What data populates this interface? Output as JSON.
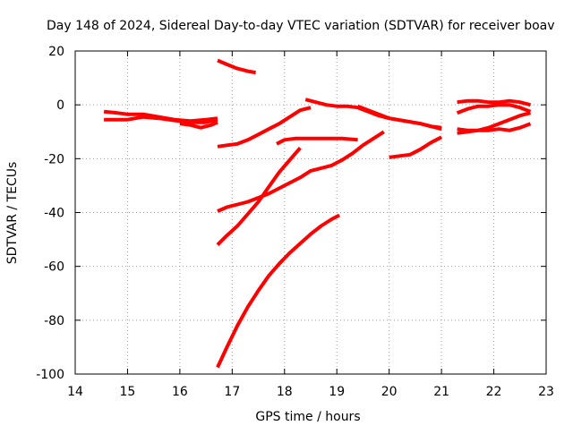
{
  "chart_data": {
    "type": "line",
    "title": "Day 148 of 2024, Sidereal Day-to-day VTEC variation (SDTVAR) for receiver boav",
    "xlabel": "GPS time / hours",
    "ylabel": "SDTVAR / TECUs",
    "xlim": [
      14,
      23
    ],
    "ylim": [
      -100,
      20
    ],
    "xticks": [
      14,
      15,
      16,
      17,
      18,
      19,
      20,
      21,
      22,
      23
    ],
    "yticks": [
      -100,
      -80,
      -60,
      -40,
      -20,
      0,
      20
    ],
    "xtick_labels": [
      "14",
      "15",
      "16",
      "17",
      "18",
      "19",
      "20",
      "21",
      "22",
      "23"
    ],
    "ytick_labels": [
      "-100",
      "-80",
      "-60",
      "-40",
      "-20",
      "0",
      "20"
    ],
    "grid": true,
    "legend": "none",
    "color": "#ff0000",
    "series": [
      {
        "x": [
          14.55,
          14.8,
          15.0,
          15.3,
          15.6,
          15.9,
          16.2,
          16.5,
          16.72
        ],
        "y": [
          -2.5,
          -3.0,
          -3.5,
          -3.5,
          -4.5,
          -5.5,
          -6.0,
          -5.5,
          -5.0
        ]
      },
      {
        "x": [
          14.55,
          14.8,
          15.0,
          15.3,
          15.6,
          15.9,
          16.2,
          16.5,
          16.72
        ],
        "y": [
          -5.5,
          -5.5,
          -5.5,
          -4.5,
          -5.0,
          -5.8,
          -6.5,
          -6.5,
          -5.5
        ]
      },
      {
        "x": [
          16.0,
          16.2,
          16.4,
          16.6,
          16.72
        ],
        "y": [
          -7.0,
          -7.5,
          -8.5,
          -7.5,
          -6.5
        ]
      },
      {
        "x": [
          16.72,
          16.9,
          17.1,
          17.3,
          17.45
        ],
        "y": [
          16.5,
          15.0,
          13.5,
          12.5,
          12.0
        ]
      },
      {
        "x": [
          16.72,
          16.9,
          17.1,
          17.3,
          17.5,
          17.7,
          17.9,
          18.1,
          18.3,
          18.5
        ],
        "y": [
          -15.5,
          -15.0,
          -14.5,
          -13.0,
          -11.0,
          -9.0,
          -7.0,
          -4.5,
          -2.0,
          -1.0
        ]
      },
      {
        "x": [
          18.4,
          18.6,
          18.8,
          19.0,
          19.2,
          19.4,
          19.6,
          19.8,
          20.0,
          20.3,
          20.6,
          20.8,
          21.0
        ],
        "y": [
          2.0,
          1.0,
          0.0,
          -0.5,
          -0.5,
          -1.0,
          -2.5,
          -4.0,
          -5.0,
          -6.0,
          -7.0,
          -8.0,
          -8.5
        ]
      },
      {
        "x": [
          19.4,
          19.6,
          19.8,
          20.0,
          20.3,
          20.6,
          20.8,
          21.0
        ],
        "y": [
          -0.5,
          -2.0,
          -3.5,
          -5.0,
          -6.0,
          -7.0,
          -8.0,
          -9.0
        ]
      },
      {
        "x": [
          17.85,
          18.0,
          18.2,
          18.5,
          18.8,
          19.1,
          19.4
        ],
        "y": [
          -14.5,
          -13.0,
          -12.5,
          -12.5,
          -12.5,
          -12.5,
          -13.0
        ]
      },
      {
        "x": [
          20.0,
          20.2,
          20.4,
          20.6,
          20.8,
          21.0
        ],
        "y": [
          -19.5,
          -19.0,
          -18.5,
          -16.5,
          -14.0,
          -12.0
        ]
      },
      {
        "x": [
          16.72,
          16.9,
          17.1,
          17.3,
          17.5,
          17.7,
          17.9,
          18.1,
          18.3,
          18.5,
          18.7,
          18.9,
          19.1,
          19.3,
          19.5,
          19.7,
          19.9
        ],
        "y": [
          -39.5,
          -38.0,
          -37.0,
          -36.0,
          -34.5,
          -33.0,
          -31.0,
          -29.0,
          -27.0,
          -24.5,
          -23.5,
          -22.5,
          -20.5,
          -18.0,
          -15.0,
          -12.5,
          -10.0
        ]
      },
      {
        "x": [
          16.72,
          16.9,
          17.1,
          17.3,
          17.5,
          17.7,
          17.9,
          18.1,
          18.3
        ],
        "y": [
          -52.0,
          -48.5,
          -45.0,
          -40.5,
          -36.0,
          -30.5,
          -25.0,
          -20.5,
          -16.0
        ]
      },
      {
        "x": [
          16.72,
          16.9,
          17.1,
          17.3,
          17.5,
          17.7,
          17.9,
          18.1,
          18.3,
          18.5,
          18.7,
          18.9,
          19.05
        ],
        "y": [
          -97.5,
          -90.0,
          -82.0,
          -75.0,
          -69.0,
          -63.5,
          -59.0,
          -55.0,
          -51.5,
          -48.0,
          -45.0,
          -42.5,
          -41.0
        ]
      },
      {
        "x": [
          21.3,
          21.5,
          21.7,
          21.9,
          22.1,
          22.3,
          22.5,
          22.7
        ],
        "y": [
          1.0,
          1.5,
          1.5,
          1.0,
          1.0,
          1.5,
          1.0,
          0.0
        ]
      },
      {
        "x": [
          21.3,
          21.5,
          21.7,
          21.9,
          22.1,
          22.3,
          22.5,
          22.7
        ],
        "y": [
          -3.0,
          -1.5,
          -0.5,
          -0.5,
          0.0,
          0.0,
          -1.0,
          -2.5
        ]
      },
      {
        "x": [
          21.3,
          21.5,
          21.7,
          21.9,
          22.1,
          22.3,
          22.5,
          22.7
        ],
        "y": [
          -10.5,
          -10.0,
          -9.5,
          -8.5,
          -7.0,
          -5.5,
          -4.0,
          -3.0
        ]
      },
      {
        "x": [
          21.3,
          21.5,
          21.7,
          21.9,
          22.1,
          22.3,
          22.5,
          22.7
        ],
        "y": [
          -9.0,
          -9.5,
          -9.5,
          -9.5,
          -9.0,
          -9.5,
          -8.5,
          -7.0
        ]
      }
    ]
  }
}
